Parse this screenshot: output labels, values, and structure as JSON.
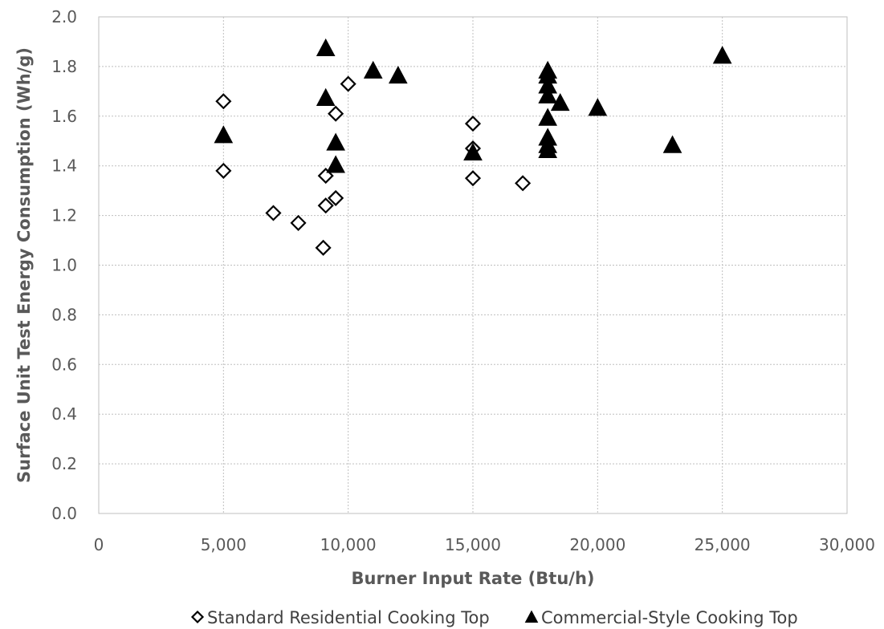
{
  "chart_data": {
    "type": "scatter",
    "title": "",
    "xlabel": "Burner Input Rate (Btu/h)",
    "ylabel": "Surface Unit Test Energy Consumption (Wh/g)",
    "xlim": [
      0,
      30000
    ],
    "ylim": [
      0,
      2.0
    ],
    "x_ticks": [
      0,
      5000,
      10000,
      15000,
      20000,
      25000,
      30000
    ],
    "x_tick_labels": [
      "0",
      "5,000",
      "10,000",
      "15,000",
      "20,000",
      "25,000",
      "30,000"
    ],
    "y_ticks": [
      0,
      0.2,
      0.4,
      0.6,
      0.8,
      1.0,
      1.2,
      1.4,
      1.6,
      1.8,
      2.0
    ],
    "y_tick_labels": [
      "0.0",
      "0.2",
      "0.4",
      "0.6",
      "0.8",
      "1.0",
      "1.2",
      "1.4",
      "1.6",
      "1.8",
      "2.0"
    ],
    "grid": true,
    "legend_position": "bottom",
    "series": [
      {
        "name": "Standard Residential Cooking Top",
        "marker": "diamond-open",
        "color": "#000000",
        "points": [
          [
            5000,
            1.66
          ],
          [
            5000,
            1.38
          ],
          [
            7000,
            1.21
          ],
          [
            8000,
            1.17
          ],
          [
            9000,
            1.07
          ],
          [
            9100,
            1.36
          ],
          [
            9100,
            1.24
          ],
          [
            9500,
            1.27
          ],
          [
            9500,
            1.61
          ],
          [
            10000,
            1.73
          ],
          [
            15000,
            1.57
          ],
          [
            15000,
            1.47
          ],
          [
            15000,
            1.35
          ],
          [
            17000,
            1.33
          ]
        ]
      },
      {
        "name": "Commercial-Style Cooking Top",
        "marker": "triangle-filled",
        "color": "#000000",
        "points": [
          [
            5000,
            1.52
          ],
          [
            9100,
            1.87
          ],
          [
            9100,
            1.67
          ],
          [
            9500,
            1.49
          ],
          [
            9500,
            1.4
          ],
          [
            11000,
            1.78
          ],
          [
            12000,
            1.76
          ],
          [
            15000,
            1.45
          ],
          [
            18000,
            1.78
          ],
          [
            18000,
            1.76
          ],
          [
            18000,
            1.72
          ],
          [
            18000,
            1.68
          ],
          [
            18000,
            1.59
          ],
          [
            18000,
            1.51
          ],
          [
            18000,
            1.48
          ],
          [
            18000,
            1.46
          ],
          [
            18500,
            1.65
          ],
          [
            20000,
            1.63
          ],
          [
            23000,
            1.48
          ],
          [
            25000,
            1.84
          ]
        ]
      }
    ]
  }
}
